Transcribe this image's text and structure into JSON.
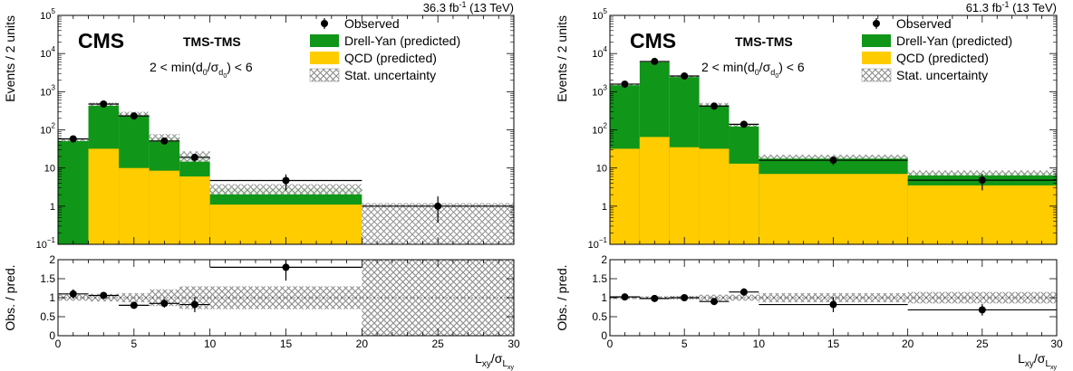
{
  "colors": {
    "drell_yan": "#109618",
    "qcd": "#ffcc00",
    "stat_pattern": "#8a8a8a",
    "points": "#000000"
  },
  "chart_data": [
    {
      "type": "bar",
      "stacked": true,
      "y_scale": "log",
      "ylim": [
        0.1,
        100000
      ],
      "xlim": [
        0,
        30
      ],
      "lumi_label": "36.3 fb",
      "lumi_exp": "-1",
      "energy_label": "(13 TeV)",
      "experiment": "CMS",
      "category": "TMS-TMS",
      "selection_label_parts": [
        "2 < min(d",
        "0",
        "/σ",
        "d",
        "0",
        ") < 6"
      ],
      "ylabel": "Events / 2 units",
      "xlabel_parts": [
        "L",
        "xy",
        "/σ",
        "L",
        "xy"
      ],
      "x_ticks": [
        "0",
        "5",
        "10",
        "15",
        "20",
        "25",
        "30"
      ],
      "y_ticks": [
        {
          "v": 0.1,
          "base": "10",
          "exp": "−1"
        },
        {
          "v": 1,
          "base": "1",
          "exp": ""
        },
        {
          "v": 10,
          "base": "10",
          "exp": ""
        },
        {
          "v": 100,
          "base": "10",
          "exp": "2"
        },
        {
          "v": 1000,
          "base": "10",
          "exp": "3"
        },
        {
          "v": 10000,
          "base": "10",
          "exp": "4"
        },
        {
          "v": 100000,
          "base": "10",
          "exp": "5"
        }
      ],
      "legend": [
        "Observed",
        "Drell-Yan (predicted)",
        "QCD (predicted)",
        "Stat. uncertainty"
      ],
      "bins": [
        [
          0,
          2
        ],
        [
          2,
          4
        ],
        [
          4,
          6
        ],
        [
          6,
          8
        ],
        [
          8,
          10
        ],
        [
          10,
          20
        ],
        [
          20,
          30
        ]
      ],
      "series": [
        {
          "name": "QCD (predicted)",
          "values": [
            0,
            32,
            10,
            8.5,
            6,
            1.1,
            0
          ]
        },
        {
          "name": "Drell-Yan (predicted)",
          "values": [
            55,
            440,
            255,
            55,
            15,
            1.8,
            0
          ]
        }
      ],
      "stat_uncertainty_rel": [
        0.08,
        0.1,
        0.12,
        0.22,
        0.3,
        0.3,
        1.0
      ],
      "observed": {
        "x": [
          1,
          3,
          5,
          7,
          9,
          15,
          25
        ],
        "y": [
          58,
          475,
          232,
          51,
          19,
          4.7,
          1
        ],
        "y_err_low": [
          8,
          22,
          15,
          7,
          4.5,
          2.1,
          0.63
        ],
        "y_err_high": [
          8,
          22,
          15,
          7,
          4.5,
          2.1,
          0.8
        ],
        "x_err": [
          1,
          1,
          1,
          1,
          1,
          5,
          5
        ]
      },
      "ratio": {
        "ylabel": "Obs. / pred.",
        "ylim": [
          0,
          2
        ],
        "y_ticks": [
          "0",
          "0.5",
          "1",
          "1.5",
          "2"
        ],
        "values": [
          1.1,
          1.06,
          0.8,
          0.85,
          0.82,
          1.8,
          null
        ],
        "err": [
          0.12,
          0.06,
          0.05,
          0.11,
          0.2,
          0.35,
          0
        ],
        "band_rel": [
          0.08,
          0.1,
          0.12,
          0.22,
          0.3,
          0.3,
          1.0
        ]
      }
    },
    {
      "type": "bar",
      "stacked": true,
      "y_scale": "log",
      "ylim": [
        0.1,
        100000
      ],
      "xlim": [
        0,
        30
      ],
      "lumi_label": "61.3 fb",
      "lumi_exp": "-1",
      "energy_label": "(13 TeV)",
      "experiment": "CMS",
      "category": "TMS-TMS",
      "selection_label_parts": [
        "2 < min(d",
        "0",
        "/σ",
        "d",
        "0",
        ") < 6"
      ],
      "ylabel": "Events / 2 units",
      "xlabel_parts": [
        "L",
        "xy",
        "/σ",
        "L",
        "xy"
      ],
      "x_ticks": [
        "0",
        "5",
        "10",
        "15",
        "20",
        "25",
        "30"
      ],
      "y_ticks": [
        {
          "v": 0.1,
          "base": "10",
          "exp": "−1"
        },
        {
          "v": 1,
          "base": "1",
          "exp": ""
        },
        {
          "v": 10,
          "base": "10",
          "exp": ""
        },
        {
          "v": 100,
          "base": "10",
          "exp": "2"
        },
        {
          "v": 1000,
          "base": "10",
          "exp": "3"
        },
        {
          "v": 10000,
          "base": "10",
          "exp": "4"
        },
        {
          "v": 100000,
          "base": "10",
          "exp": "5"
        }
      ],
      "legend": [
        "Observed",
        "Drell-Yan (predicted)",
        "QCD (predicted)",
        "Stat. uncertainty"
      ],
      "bins": [
        [
          0,
          2
        ],
        [
          2,
          4
        ],
        [
          4,
          6
        ],
        [
          6,
          8
        ],
        [
          8,
          10
        ],
        [
          10,
          20
        ],
        [
          20,
          30
        ]
      ],
      "series": [
        {
          "name": "QCD (predicted)",
          "values": [
            32,
            65,
            35,
            32,
            13,
            7,
            3.5
          ]
        },
        {
          "name": "Drell-Yan (predicted)",
          "values": [
            1500,
            6100,
            2500,
            440,
            120,
            13,
            4
          ]
        }
      ],
      "stat_uncertainty_rel": [
        0.04,
        0.04,
        0.05,
        0.08,
        0.08,
        0.12,
        0.15
      ],
      "observed": {
        "x": [
          1,
          3,
          5,
          7,
          9,
          15,
          25
        ],
        "y": [
          1580,
          6200,
          2580,
          420,
          140,
          16,
          4.8
        ],
        "y_err_low": [
          40,
          80,
          50,
          20,
          12,
          4,
          2.2
        ],
        "y_err_high": [
          40,
          80,
          50,
          20,
          12,
          4,
          2.2
        ],
        "x_err": [
          1,
          1,
          1,
          1,
          1,
          5,
          5
        ]
      },
      "ratio": {
        "ylabel": "Obs. / pred.",
        "ylim": [
          0,
          2
        ],
        "y_ticks": [
          "0",
          "0.5",
          "1",
          "1.5",
          "2"
        ],
        "values": [
          1.02,
          0.98,
          1.0,
          0.9,
          1.15,
          0.82,
          0.68
        ],
        "err": [
          0.03,
          0.02,
          0.02,
          0.05,
          0.1,
          0.2,
          0.15
        ],
        "band_rel": [
          0.04,
          0.04,
          0.05,
          0.08,
          0.08,
          0.12,
          0.15
        ]
      }
    }
  ]
}
